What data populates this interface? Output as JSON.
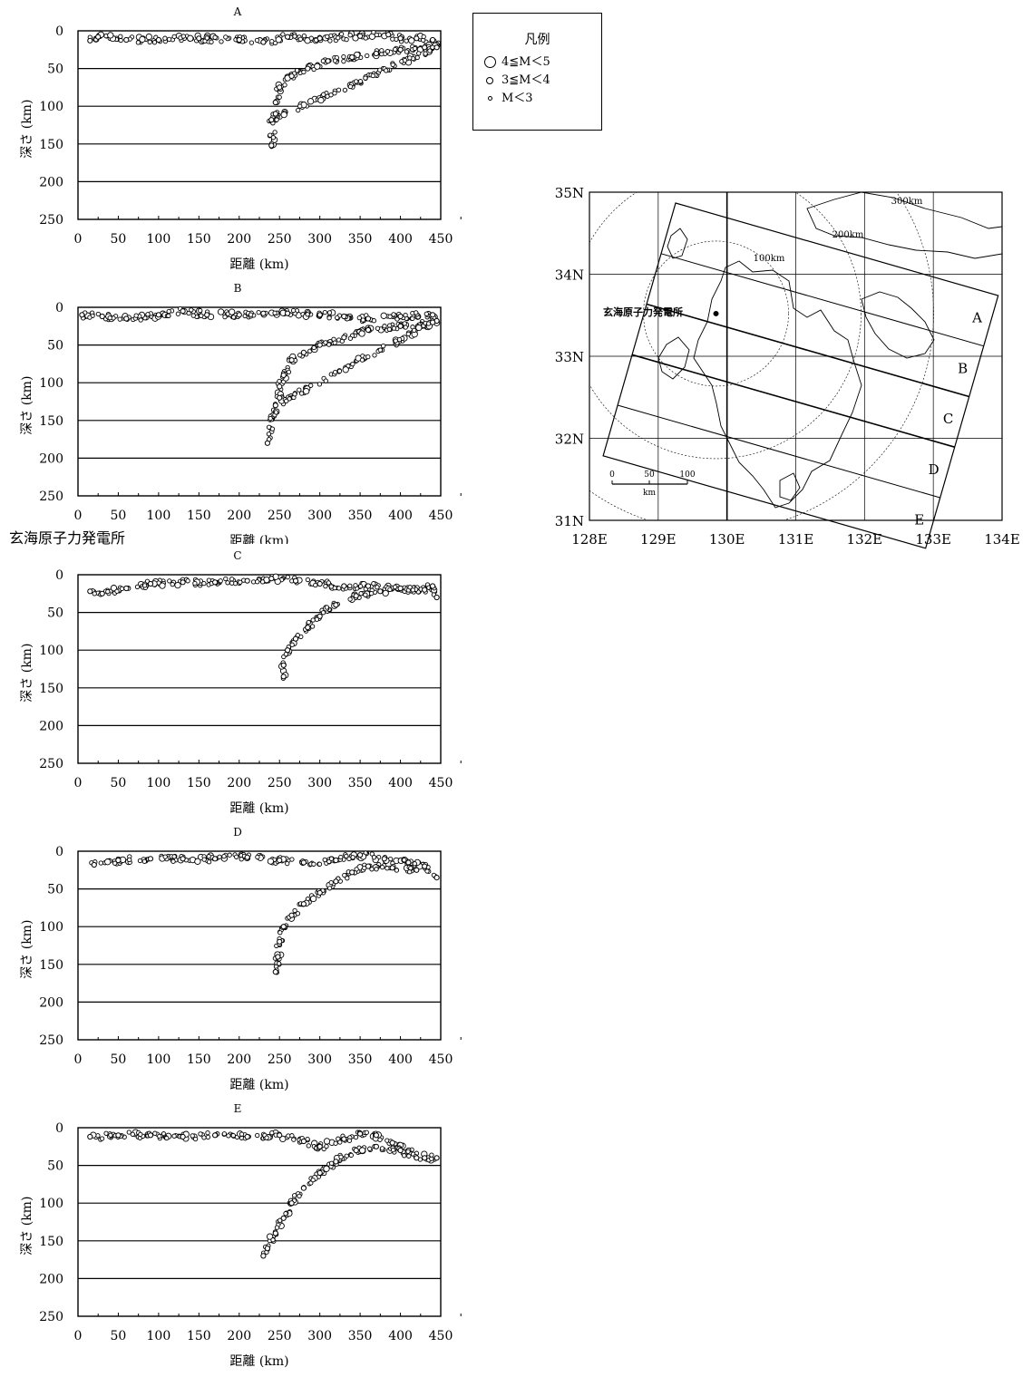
{
  "legend": {
    "title": "凡例",
    "items": [
      {
        "label": "4≦M＜5",
        "size": 13
      },
      {
        "label": "3≦M＜4",
        "size": 8
      },
      {
        "label": "M＜3",
        "size": 5
      }
    ]
  },
  "plant_caption": "玄海原子力発電所",
  "chart_data": [
    {
      "type": "scatter",
      "title": "A",
      "xlabel": "距離 (km)",
      "ylabel": "深さ (km)",
      "xlim": [
        0,
        450
      ],
      "ylim": [
        250,
        0
      ],
      "xticks": [
        0,
        50,
        100,
        150,
        200,
        250,
        300,
        350,
        400,
        450
      ],
      "yticks": [
        0,
        50,
        100,
        150,
        200,
        250
      ],
      "grid": "horizontal",
      "series": [
        {
          "points": [
            [
              15,
              13
            ],
            [
              25,
              8
            ],
            [
              60,
              12
            ],
            [
              100,
              12
            ],
            [
              150,
              10
            ],
            [
              200,
              12
            ],
            [
              230,
              15
            ],
            [
              260,
              8
            ],
            [
              300,
              10
            ],
            [
              350,
              7
            ],
            [
              385,
              5
            ],
            [
              400,
              10
            ],
            [
              420,
              10
            ],
            [
              440,
              12
            ],
            [
              445,
              18
            ]
          ]
        },
        {
          "points": [
            [
              245,
              95
            ],
            [
              250,
              75
            ],
            [
              265,
              60
            ],
            [
              285,
              50
            ],
            [
              310,
              40
            ],
            [
              340,
              35
            ],
            [
              370,
              30
            ],
            [
              400,
              25
            ],
            [
              430,
              22
            ],
            [
              445,
              22
            ],
            [
              240,
              118
            ],
            [
              245,
              110
            ],
            [
              240,
              152
            ]
          ]
        }
      ]
    },
    {
      "type": "scatter",
      "title": "B",
      "xlabel": "距離 (km)",
      "ylabel": "深さ (km)",
      "xlim": [
        0,
        450
      ],
      "ylim": [
        250,
        0
      ],
      "xticks": [
        0,
        50,
        100,
        150,
        200,
        250,
        300,
        350,
        400,
        450
      ],
      "yticks": [
        0,
        50,
        100,
        150,
        200,
        250
      ],
      "grid": "horizontal",
      "series": [
        {
          "points": [
            [
              5,
              10
            ],
            [
              30,
              12
            ],
            [
              60,
              15
            ],
            [
              100,
              10
            ],
            [
              130,
              5
            ],
            [
              160,
              10
            ],
            [
              200,
              10
            ],
            [
              230,
              8
            ],
            [
              260,
              8
            ],
            [
              300,
              10
            ],
            [
              330,
              12
            ],
            [
              360,
              15
            ],
            [
              400,
              12
            ],
            [
              440,
              10
            ],
            [
              445,
              18
            ]
          ]
        },
        {
          "points": [
            [
              250,
              120
            ],
            [
              250,
              105
            ],
            [
              255,
              90
            ],
            [
              265,
              70
            ],
            [
              280,
              60
            ],
            [
              300,
              50
            ],
            [
              330,
              40
            ],
            [
              360,
              30
            ],
            [
              400,
              25
            ],
            [
              440,
              20
            ],
            [
              245,
              130
            ],
            [
              235,
              180
            ]
          ]
        }
      ]
    },
    {
      "type": "scatter",
      "title": "C",
      "xlabel": "距離 (km)",
      "ylabel": "深さ (km)",
      "xlim": [
        0,
        450
      ],
      "ylim": [
        250,
        0
      ],
      "xticks": [
        0,
        50,
        100,
        150,
        200,
        250,
        300,
        350,
        400,
        450
      ],
      "yticks": [
        0,
        50,
        100,
        150,
        200,
        250
      ],
      "grid": "horizontal",
      "series": [
        {
          "points": [
            [
              15,
              22
            ],
            [
              30,
              25
            ],
            [
              60,
              18
            ],
            [
              90,
              12
            ],
            [
              130,
              10
            ],
            [
              170,
              10
            ],
            [
              210,
              8
            ],
            [
              240,
              5
            ],
            [
              270,
              8
            ],
            [
              300,
              12
            ],
            [
              330,
              15
            ],
            [
              360,
              15
            ],
            [
              390,
              18
            ],
            [
              420,
              20
            ],
            [
              440,
              15
            ],
            [
              445,
              30
            ]
          ]
        },
        {
          "points": [
            [
              255,
              135
            ],
            [
              255,
              120
            ],
            [
              260,
              100
            ],
            [
              270,
              85
            ],
            [
              285,
              70
            ],
            [
              300,
              55
            ],
            [
              320,
              40
            ],
            [
              345,
              28
            ],
            [
              375,
              22
            ],
            [
              400,
              18
            ],
            [
              430,
              20
            ]
          ]
        }
      ]
    },
    {
      "type": "scatter",
      "title": "D",
      "xlabel": "距離 (km)",
      "ylabel": "深さ (km)",
      "xlim": [
        0,
        450
      ],
      "ylim": [
        250,
        0
      ],
      "xticks": [
        0,
        50,
        100,
        150,
        200,
        250,
        300,
        350,
        400,
        450
      ],
      "yticks": [
        0,
        50,
        100,
        150,
        200,
        250
      ],
      "grid": "horizontal",
      "series": [
        {
          "points": [
            [
              20,
              18
            ],
            [
              50,
              12
            ],
            [
              90,
              10
            ],
            [
              130,
              10
            ],
            [
              170,
              10
            ],
            [
              210,
              8
            ],
            [
              250,
              12
            ],
            [
              280,
              15
            ],
            [
              320,
              12
            ],
            [
              350,
              5
            ],
            [
              380,
              10
            ],
            [
              410,
              15
            ],
            [
              430,
              20
            ],
            [
              445,
              35
            ]
          ]
        },
        {
          "points": [
            [
              245,
              160
            ],
            [
              248,
              140
            ],
            [
              250,
              120
            ],
            [
              255,
              100
            ],
            [
              265,
              85
            ],
            [
              280,
              70
            ],
            [
              300,
              55
            ],
            [
              320,
              40
            ],
            [
              340,
              28
            ],
            [
              360,
              20
            ],
            [
              390,
              22
            ],
            [
              420,
              25
            ]
          ]
        }
      ]
    },
    {
      "type": "scatter",
      "title": "E",
      "xlabel": "距離 (km)",
      "ylabel": "深さ (km)",
      "xlim": [
        0,
        450
      ],
      "ylim": [
        250,
        0
      ],
      "xticks": [
        0,
        50,
        100,
        150,
        200,
        250,
        300,
        350,
        400,
        450
      ],
      "yticks": [
        0,
        50,
        100,
        150,
        200,
        250
      ],
      "grid": "horizontal",
      "series": [
        {
          "points": [
            [
              15,
              12
            ],
            [
              50,
              10
            ],
            [
              90,
              10
            ],
            [
              130,
              12
            ],
            [
              170,
              10
            ],
            [
              210,
              12
            ],
            [
              250,
              10
            ],
            [
              280,
              18
            ],
            [
              300,
              25
            ],
            [
              330,
              15
            ],
            [
              350,
              8
            ],
            [
              370,
              10
            ],
            [
              390,
              20
            ],
            [
              410,
              30
            ],
            [
              430,
              40
            ],
            [
              445,
              40
            ]
          ]
        },
        {
          "points": [
            [
              230,
              170
            ],
            [
              235,
              160
            ],
            [
              245,
              140
            ],
            [
              255,
              120
            ],
            [
              265,
              100
            ],
            [
              280,
              80
            ],
            [
              300,
              60
            ],
            [
              320,
              45
            ],
            [
              345,
              30
            ],
            [
              370,
              25
            ],
            [
              400,
              30
            ],
            [
              420,
              40
            ]
          ]
        }
      ]
    },
    {
      "type": "map",
      "title": "",
      "xlim": [
        128,
        134
      ],
      "ylim": [
        31,
        35
      ],
      "xticks": [
        "128E",
        "129E",
        "130E",
        "131E",
        "132E",
        "133E",
        "134E"
      ],
      "yticks": [
        "31N",
        "32N",
        "33N",
        "34N",
        "35N"
      ],
      "plant_label": "玄海原子力発電所",
      "plant_location": [
        129.84,
        33.52
      ],
      "circle_labels": [
        "100km",
        "200km",
        "300km"
      ],
      "band_labels": [
        "A",
        "B",
        "C",
        "D",
        "E"
      ],
      "scale_labels": [
        "0",
        "50",
        "100",
        "km"
      ]
    }
  ]
}
